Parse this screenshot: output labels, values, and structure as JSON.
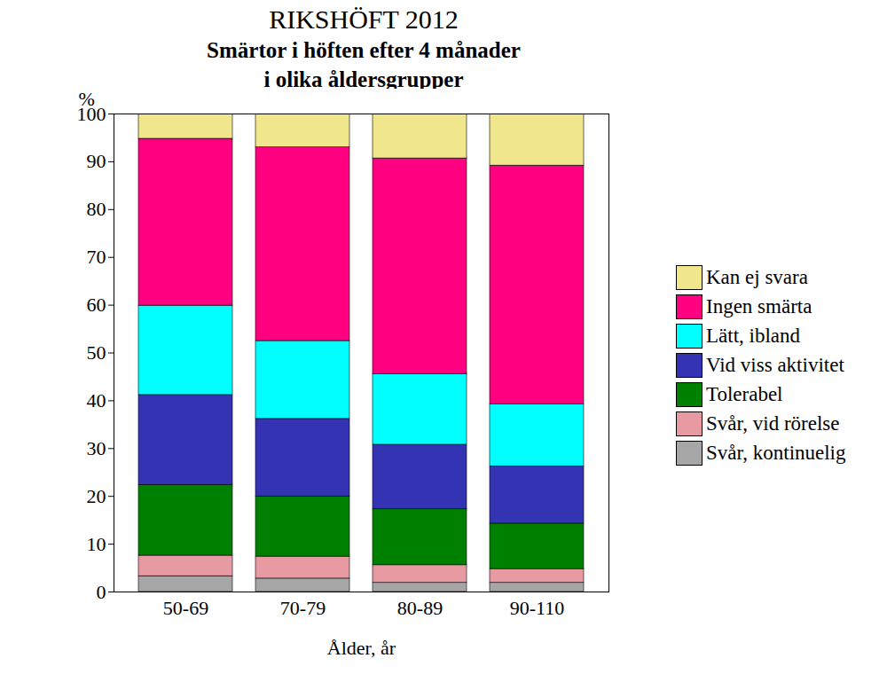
{
  "chart_data": {
    "type": "bar",
    "stacked": true,
    "title": "RIKSHÖFT 2012",
    "subtitle": "Smärtor i höften efter 4 månader\ni olika åldersgrupper",
    "x_label": "Ålder, år",
    "y_label": "%",
    "categories": [
      "50-69",
      "70-79",
      "80-89",
      "90-110"
    ],
    "ylim": [
      0,
      100
    ],
    "yticks": [
      0,
      10,
      20,
      30,
      40,
      50,
      60,
      70,
      80,
      90,
      100
    ],
    "legend": "right",
    "series": [
      {
        "name": "Svår, kontinuelig",
        "color": "#a6a6a6",
        "values": [
          3.3,
          2.8,
          1.9,
          1.9
        ]
      },
      {
        "name": "Svår, vid rörelse",
        "color": "#e89aa3",
        "values": [
          4.3,
          4.6,
          3.7,
          2.9
        ]
      },
      {
        "name": "Tolerabel",
        "color": "#008000",
        "values": [
          14.8,
          12.6,
          11.7,
          9.5
        ]
      },
      {
        "name": "Vid viss aktivitet",
        "color": "#3333b3",
        "values": [
          18.8,
          16.2,
          13.5,
          12.0
        ]
      },
      {
        "name": "Lätt, ibland",
        "color": "#00ffff",
        "values": [
          18.7,
          16.3,
          14.8,
          13.0
        ]
      },
      {
        "name": "Ingen smärta",
        "color": "#ff0080",
        "values": [
          34.9,
          40.5,
          45.1,
          49.9
        ]
      },
      {
        "name": "Kan ej svara",
        "color": "#f0e68c",
        "values": [
          5.2,
          7.0,
          9.3,
          10.8
        ]
      }
    ]
  }
}
